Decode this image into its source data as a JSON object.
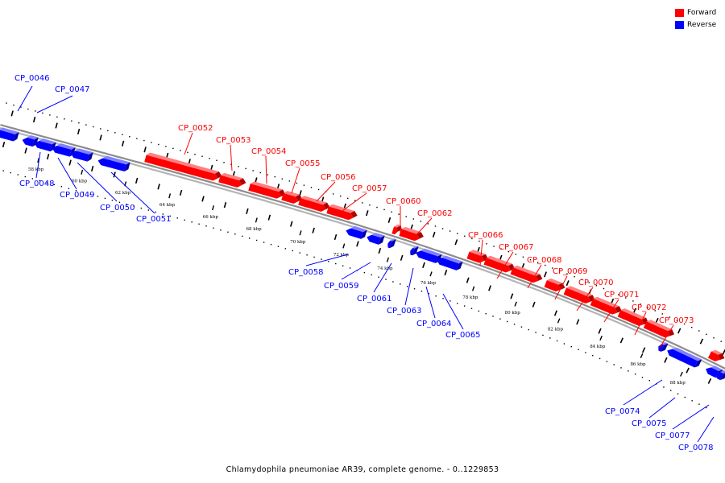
{
  "caption": "Chlamydophila pneumoniae AR39, complete genome. - 0..1229853",
  "legend": [
    {
      "label": "Forward",
      "color": "#ff0000"
    },
    {
      "label": "Reverse",
      "color": "#0000ff"
    }
  ],
  "colors": {
    "forward": "#ff0000",
    "forward_top": "#ff8080",
    "forward_side": "#b00000",
    "reverse": "#0000ff",
    "reverse_top": "#8080ff",
    "reverse_side": "#0000a8",
    "backbone": "#999999",
    "ticks": "#000000"
  },
  "scale_labels": [
    "58 kbp",
    "60 kbp",
    "62 kbp",
    "64 kbp",
    "66 kbp",
    "68 kbp",
    "70 kbp",
    "72 kbp",
    "74 kbp",
    "76 kbp",
    "78 kbp",
    "80 kbp",
    "82 kbp",
    "84 kbp",
    "86 kbp",
    "88 kbp"
  ],
  "forward_genes": [
    "CP_0052",
    "CP_0053",
    "CP_0054",
    "CP_0055",
    "CP_0056",
    "CP_0057",
    "CP_0060",
    "CP_0062",
    "CP_0066",
    "CP_0067",
    "CP_0068",
    "CP_0069",
    "CP_0070",
    "CP_0071",
    "CP_0072",
    "CP_0073"
  ],
  "reverse_genes": [
    "CP_0046",
    "CP_0047",
    "CP_0048",
    "CP_0049",
    "CP_0050",
    "CP_0051",
    "CP_0058",
    "CP_0059",
    "CP_0061",
    "CP_0063",
    "CP_0064",
    "CP_0065",
    "CP_0074",
    "CP_0075",
    "CP_0077",
    "CP_0078"
  ]
}
